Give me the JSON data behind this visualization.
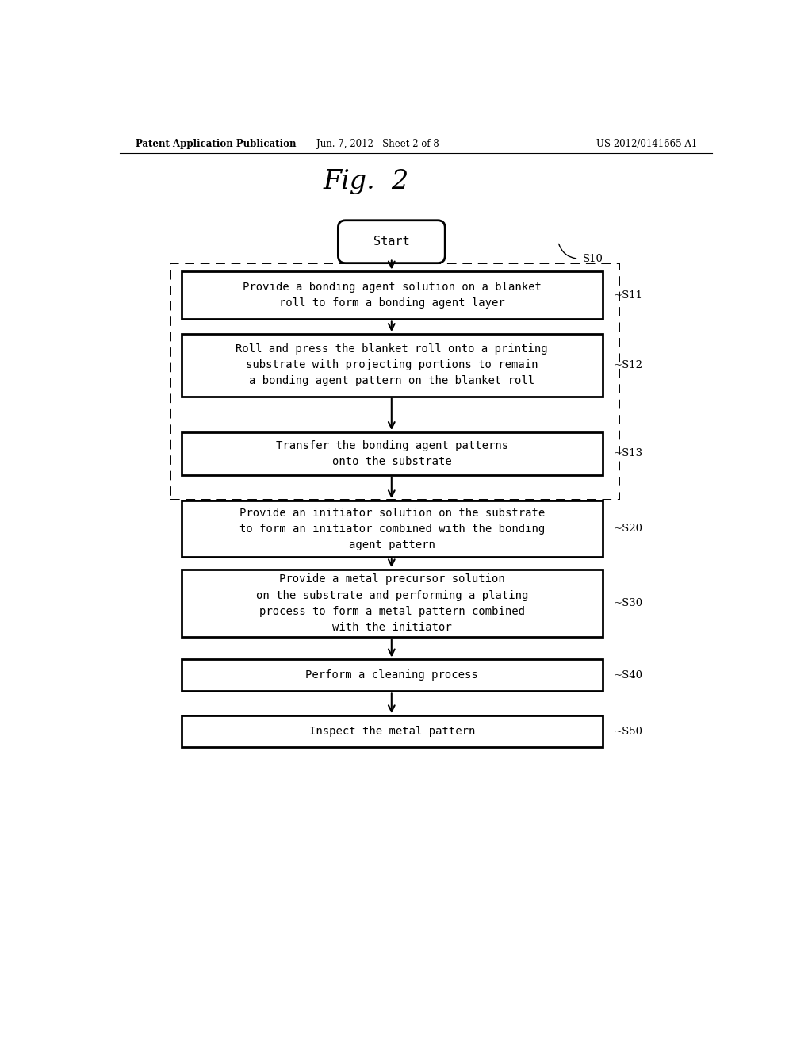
{
  "title": "Fig.  2",
  "header_left": "Patent Application Publication",
  "header_center": "Jun. 7, 2012   Sheet 2 of 8",
  "header_right": "US 2012/0141665 A1",
  "background_color": "#ffffff",
  "text_color": "#000000",
  "fig_width": 10.24,
  "fig_height": 13.2,
  "start_label": "Start",
  "steps": [
    {
      "id": "S11",
      "text": "Provide a bonding agent solution on a blanket\nroll to form a bonding agent layer",
      "inside_dashed": true
    },
    {
      "id": "S12",
      "text": "Roll and press the blanket roll onto a printing\nsubstrate with projecting portions to remain\na bonding agent pattern on the blanket roll",
      "inside_dashed": true
    },
    {
      "id": "S13",
      "text": "Transfer the bonding agent patterns\nonto the substrate",
      "inside_dashed": true
    },
    {
      "id": "S20",
      "text": "Provide an initiator solution on the substrate\nto form an initiator combined with the bonding\nagent pattern",
      "inside_dashed": false
    },
    {
      "id": "S30",
      "text": "Provide a metal precursor solution\non the substrate and performing a plating\nprocess to form a metal pattern combined\nwith the initiator",
      "inside_dashed": false
    },
    {
      "id": "S40",
      "text": "Perform a cleaning process",
      "inside_dashed": false
    },
    {
      "id": "S50",
      "text": "Inspect the metal pattern",
      "inside_dashed": false
    }
  ],
  "dashed_group_label": "S10"
}
